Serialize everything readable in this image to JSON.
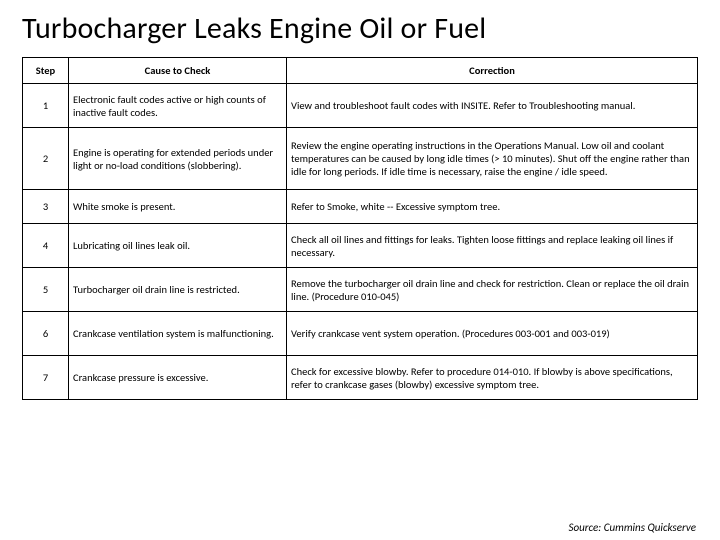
{
  "title": "Turbocharger Leaks Engine Oil or Fuel",
  "headers": {
    "step": "Step",
    "cause": "Cause to Check",
    "correction": "Correction"
  },
  "rows": [
    {
      "step": "1",
      "cause": "Electronic fault codes active or high counts of inactive fault codes.",
      "correction": "View and troubleshoot fault codes with INSITE. Refer to Troubleshooting manual."
    },
    {
      "step": "2",
      "cause": "Engine is operating for extended periods under light or no-load conditions (slobbering).",
      "correction": "Review the engine operating instructions in the Operations Manual. Low oil and coolant temperatures can be caused by long idle times (> 10 minutes). Shut off the engine rather than idle for long periods. If idle time is necessary, raise the engine / idle speed."
    },
    {
      "step": "3",
      "cause": "White smoke is present.",
      "correction": "Refer to Smoke, white -- Excessive symptom tree."
    },
    {
      "step": "4",
      "cause": "Lubricating oil lines leak oil.",
      "correction": "Check all oil lines and fittings for leaks. Tighten loose fittings and replace leaking oil lines if necessary."
    },
    {
      "step": "5",
      "cause": "Turbocharger oil drain line is restricted.",
      "correction": "Remove the turbocharger oil drain line and check for restriction. Clean or replace the oil drain line. (Procedure 010-045)"
    },
    {
      "step": "6",
      "cause": "Crankcase ventilation system is malfunctioning.",
      "correction": "Verify crankcase vent system operation. (Procedures 003-001 and 003-019)"
    },
    {
      "step": "7",
      "cause": "Crankcase pressure is excessive.",
      "correction": "Check for excessive blowby. Refer to procedure 014-010. If blowby is above specifications, refer to crankcase gases (blowby) excessive symptom tree."
    }
  ],
  "row_heights": [
    "med",
    "tall",
    "short",
    "med",
    "med",
    "med",
    "med"
  ],
  "source_line": "Source: Cummins Quickserve"
}
